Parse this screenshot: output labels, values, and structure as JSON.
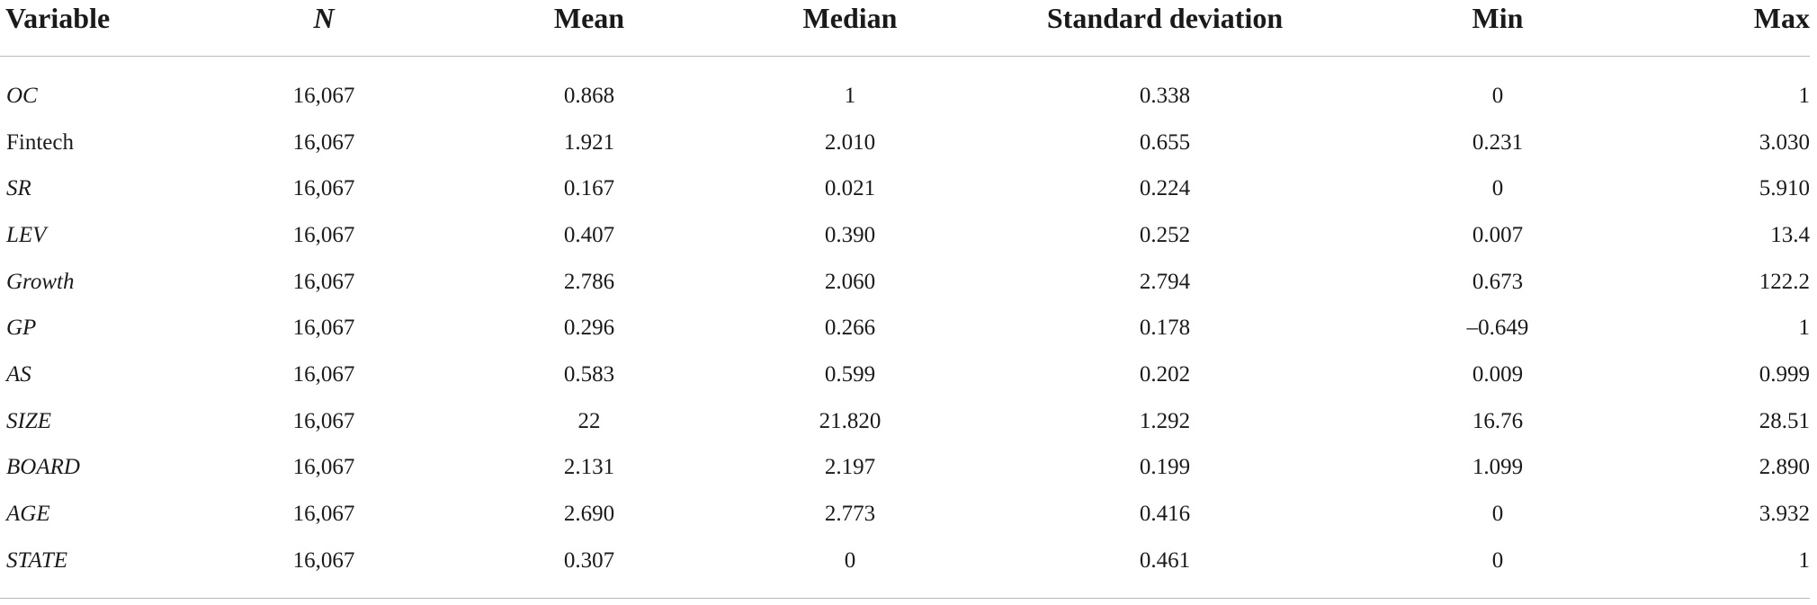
{
  "table": {
    "columns": [
      {
        "label": "Variable",
        "italic": false
      },
      {
        "label": "N",
        "italic": true
      },
      {
        "label": "Mean",
        "italic": false
      },
      {
        "label": "Median",
        "italic": false
      },
      {
        "label": "Standard deviation",
        "italic": false
      },
      {
        "label": "Min",
        "italic": false
      },
      {
        "label": "Max",
        "italic": false
      }
    ],
    "rows": [
      {
        "variable": "OC",
        "italic": true,
        "n": "16,067",
        "mean": "0.868",
        "median": "1",
        "sd": "0.338",
        "min": "0",
        "max": "1"
      },
      {
        "variable": "Fintech",
        "italic": false,
        "n": "16,067",
        "mean": "1.921",
        "median": "2.010",
        "sd": "0.655",
        "min": "0.231",
        "max": "3.030"
      },
      {
        "variable": "SR",
        "italic": true,
        "n": "16,067",
        "mean": "0.167",
        "median": "0.021",
        "sd": "0.224",
        "min": "0",
        "max": "5.910"
      },
      {
        "variable": "LEV",
        "italic": true,
        "n": "16,067",
        "mean": "0.407",
        "median": "0.390",
        "sd": "0.252",
        "min": "0.007",
        "max": "13.4"
      },
      {
        "variable": "Growth",
        "italic": true,
        "n": "16,067",
        "mean": "2.786",
        "median": "2.060",
        "sd": "2.794",
        "min": "0.673",
        "max": "122.2"
      },
      {
        "variable": "GP",
        "italic": true,
        "n": "16,067",
        "mean": "0.296",
        "median": "0.266",
        "sd": "0.178",
        "min": "–0.649",
        "max": "1"
      },
      {
        "variable": "AS",
        "italic": true,
        "n": "16,067",
        "mean": "0.583",
        "median": "0.599",
        "sd": "0.202",
        "min": "0.009",
        "max": "0.999"
      },
      {
        "variable": "SIZE",
        "italic": true,
        "n": "16,067",
        "mean": "22",
        "median": "21.820",
        "sd": "1.292",
        "min": "16.76",
        "max": "28.51"
      },
      {
        "variable": "BOARD",
        "italic": true,
        "n": "16,067",
        "mean": "2.131",
        "median": "2.197",
        "sd": "0.199",
        "min": "1.099",
        "max": "2.890"
      },
      {
        "variable": "AGE",
        "italic": true,
        "n": "16,067",
        "mean": "2.690",
        "median": "2.773",
        "sd": "0.416",
        "min": "0",
        "max": "3.932"
      },
      {
        "variable": "STATE",
        "italic": true,
        "n": "16,067",
        "mean": "0.307",
        "median": "0",
        "sd": "0.461",
        "min": "0",
        "max": "1"
      }
    ]
  },
  "colors": {
    "text": "#1a1a1a",
    "rule": "#b9b9b9",
    "background": "#ffffff"
  }
}
